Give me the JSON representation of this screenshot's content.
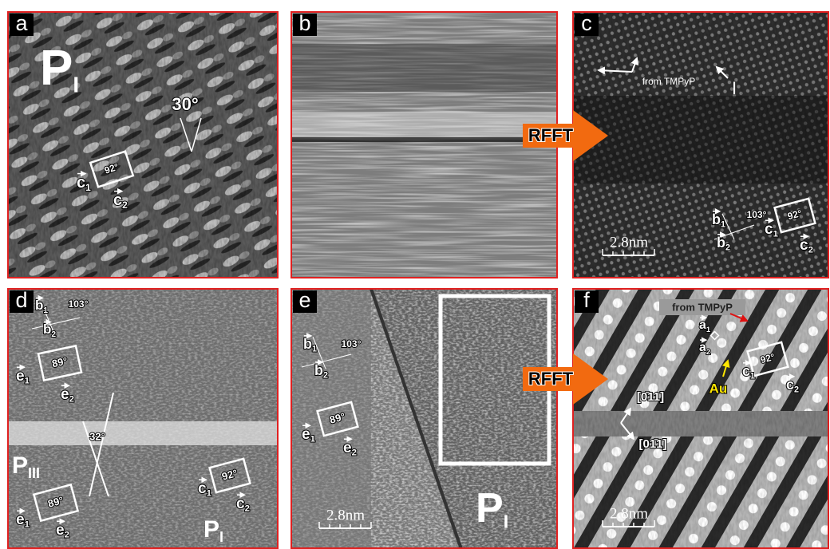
{
  "panels": {
    "a": {
      "letter": "a",
      "phase": {
        "base": "P",
        "sub": "I"
      },
      "angle": "30°",
      "cell_angle": "92°",
      "vectors_c": [
        {
          "base": "c",
          "sub": "1"
        },
        {
          "base": "c",
          "sub": "2"
        }
      ]
    },
    "b": {
      "letter": "b"
    },
    "c": {
      "letter": "c",
      "note": "from TMPyP",
      "marker": "I",
      "angle_b": "103°",
      "cell_angle": "92°",
      "vectors_b": [
        {
          "base": "b",
          "sub": "1"
        },
        {
          "base": "b",
          "sub": "2"
        }
      ],
      "vectors_c": [
        {
          "base": "c",
          "sub": "1"
        },
        {
          "base": "c",
          "sub": "2"
        }
      ],
      "scale": "2.8nm"
    },
    "d": {
      "letter": "d",
      "angle_b": "103°",
      "vectors_b": [
        {
          "base": "b",
          "sub": "1"
        },
        {
          "base": "b",
          "sub": "2"
        }
      ],
      "cell_angle_top": "89°",
      "vectors_e_top": [
        {
          "base": "e",
          "sub": "1"
        },
        {
          "base": "e",
          "sub": "2"
        }
      ],
      "cross_angle": "32°",
      "phase_iii": {
        "base": "P",
        "sub": "III"
      },
      "cell_angle_bottom": "89°",
      "vectors_e_bottom": [
        {
          "base": "e",
          "sub": "1"
        },
        {
          "base": "e",
          "sub": "2"
        }
      ],
      "cell_angle_c": "92°",
      "vectors_c": [
        {
          "base": "c",
          "sub": "1"
        },
        {
          "base": "c",
          "sub": "2"
        }
      ],
      "phase_i": {
        "base": "P",
        "sub": "I"
      }
    },
    "e": {
      "letter": "e",
      "angle_b": "103°",
      "vectors_b": [
        {
          "base": "b",
          "sub": "1"
        },
        {
          "base": "b",
          "sub": "2"
        }
      ],
      "cell_angle": "89°",
      "vectors_e": [
        {
          "base": "e",
          "sub": "1"
        },
        {
          "base": "e",
          "sub": "2"
        }
      ],
      "phase": {
        "base": "P",
        "sub": "I"
      },
      "scale": "2.8nm"
    },
    "f": {
      "letter": "f",
      "note": "from TMPyP",
      "vectors_a": [
        {
          "base": "a",
          "sub": "1"
        },
        {
          "base": "a",
          "sub": "2"
        }
      ],
      "marker": "Au",
      "cell_angle": "92°",
      "vectors_c": [
        {
          "base": "c",
          "sub": "1"
        },
        {
          "base": "c",
          "sub": "2"
        }
      ],
      "direction_1": "[0̄11]",
      "direction_2": "[01̄1]",
      "scale": "2.8nm"
    }
  },
  "arrows": [
    "RFFT",
    "RFFT"
  ]
}
